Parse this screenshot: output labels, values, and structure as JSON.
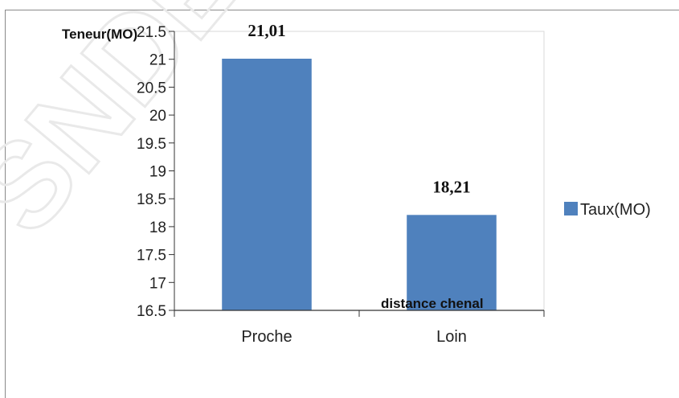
{
  "chart_data": {
    "type": "bar",
    "categories": [
      "Proche",
      "Loin"
    ],
    "series": [
      {
        "name": "Taux(MO)",
        "values": [
          21.01,
          18.21
        ],
        "color": "#4f81bd"
      }
    ],
    "data_labels": [
      "21,01",
      "18,21"
    ],
    "ylabel": "Teneur(MO)",
    "xlabel": "distance chenal",
    "ylim": [
      16.5,
      21.5
    ],
    "yticks": [
      "16.5",
      "17",
      "17.5",
      "18",
      "18.5",
      "19",
      "19.5",
      "20",
      "20.5",
      "21",
      "21.5"
    ],
    "grid": false,
    "legend": "right"
  }
}
